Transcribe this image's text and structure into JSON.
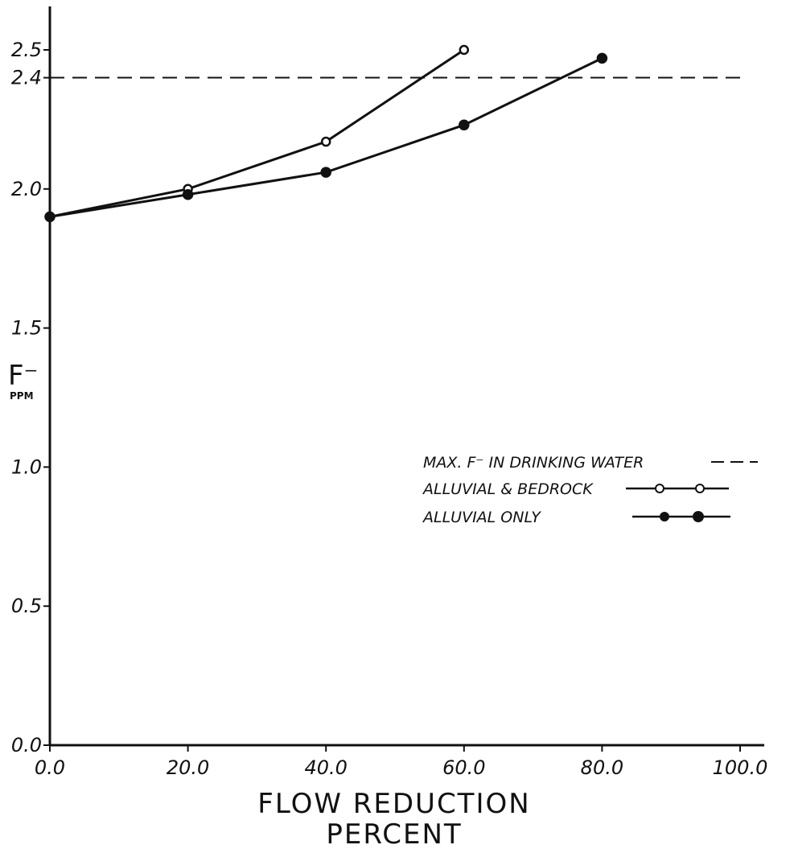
{
  "chart_data": {
    "type": "line",
    "title": "",
    "xlabel_line1": "FLOW REDUCTION",
    "xlabel_line2": "PERCENT",
    "ylabel": "F⁻",
    "ylabel_unit": "PPM",
    "xlim": [
      0,
      100
    ],
    "ylim": [
      0,
      2.5
    ],
    "x_ticks": [
      {
        "value": 0,
        "label": "0.0"
      },
      {
        "value": 20,
        "label": "20.0"
      },
      {
        "value": 40,
        "label": "40.0"
      },
      {
        "value": 60,
        "label": "60.0"
      },
      {
        "value": 80,
        "label": "80.0"
      },
      {
        "value": 100,
        "label": "100.0"
      }
    ],
    "y_ticks": [
      {
        "value": 0,
        "label": "0.0"
      },
      {
        "value": 0.5,
        "label": "0.5"
      },
      {
        "value": 1.0,
        "label": "1.0"
      },
      {
        "value": 1.5,
        "label": "1.5"
      },
      {
        "value": 2.0,
        "label": "2.0"
      },
      {
        "value": 2.4,
        "label": "2.4"
      },
      {
        "value": 2.5,
        "label": "2.5"
      }
    ],
    "reference_line": {
      "name": "MAX. F⁻ IN DRINKING WATER",
      "y": 2.4,
      "style": "dashed"
    },
    "series": [
      {
        "name": "ALLUVIAL & BEDROCK",
        "marker": "open-circle",
        "x": [
          0,
          20,
          40,
          60
        ],
        "y": [
          1.9,
          2.0,
          2.17,
          2.5
        ]
      },
      {
        "name": "ALLUVIAL ONLY",
        "marker": "filled-circle",
        "x": [
          0,
          20,
          40,
          60,
          80
        ],
        "y": [
          1.9,
          1.98,
          2.06,
          2.23,
          2.47
        ]
      }
    ],
    "legend_position": "middle-right",
    "grid": false
  }
}
